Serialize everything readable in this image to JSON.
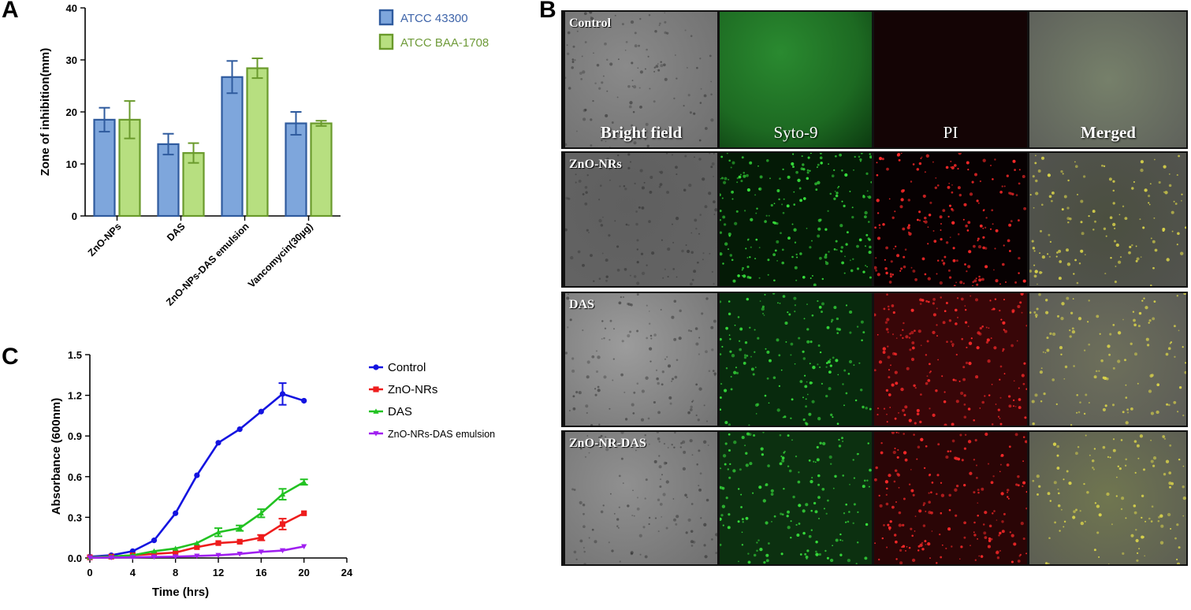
{
  "panels": {
    "a": "A",
    "b": "B",
    "c": "C"
  },
  "colors": {
    "atcc43300_fill": "#7ea6dc",
    "atcc43300_edge": "#2f5b9e",
    "atcc43300_text": "#3e64a9",
    "baa1708_fill": "#b7df80",
    "baa1708_edge": "#6a9a2c",
    "baa1708_text": "#6f9b3a",
    "control": "#1414e0",
    "zno_nrs": "#ee1c1c",
    "das": "#22c222",
    "emulsion": "#a020f0"
  },
  "chart_data": [
    {
      "type": "bar",
      "title": "",
      "ylabel": "Zone of inhibition(mm)",
      "xlabel": "",
      "ylim": [
        0,
        40
      ],
      "yticks": [
        "0",
        "10",
        "20",
        "30",
        "40"
      ],
      "categories": [
        "ZnO-NPs",
        "DAS",
        "ZnO-NPs-DAS emulsion",
        "Vancomycin(30µg)"
      ],
      "series": [
        {
          "name": "ATCC 43300",
          "values": [
            18.5,
            13.8,
            26.7,
            17.8
          ],
          "errors": [
            2.3,
            2.0,
            3.1,
            2.2
          ]
        },
        {
          "name": "ATCC BAA-1708",
          "values": [
            18.5,
            12.1,
            28.4,
            17.8
          ],
          "errors": [
            3.6,
            1.9,
            1.9,
            0.5
          ]
        }
      ],
      "legend": "top-right"
    },
    {
      "type": "line",
      "title": "",
      "xlabel": "Time (hrs)",
      "ylabel": "Absorbance (600nm)",
      "xlim": [
        0,
        24
      ],
      "ylim": [
        0,
        1.5
      ],
      "xticks": [
        "0",
        "4",
        "8",
        "12",
        "16",
        "20",
        "24"
      ],
      "yticks": [
        "0.0",
        "0.3",
        "0.6",
        "0.9",
        "1.2",
        "1.5"
      ],
      "x": [
        0,
        2,
        4,
        6,
        8,
        10,
        12,
        14,
        16,
        18,
        20
      ],
      "series": [
        {
          "name": "Control",
          "marker": "circle",
          "values": [
            0.01,
            0.02,
            0.05,
            0.13,
            0.33,
            0.61,
            0.85,
            0.95,
            1.08,
            1.21,
            1.16
          ],
          "errors": [
            0,
            0,
            0,
            0,
            0,
            0,
            0,
            0,
            0,
            0.08,
            0
          ]
        },
        {
          "name": "ZnO-NRs",
          "marker": "square",
          "values": [
            0.005,
            0.01,
            0.02,
            0.03,
            0.04,
            0.08,
            0.11,
            0.12,
            0.15,
            0.25,
            0.33
          ],
          "errors": [
            0,
            0,
            0,
            0,
            0,
            0,
            0,
            0,
            0.02,
            0.04,
            0
          ]
        },
        {
          "name": "DAS",
          "marker": "triangle-up",
          "values": [
            0.005,
            0.01,
            0.02,
            0.05,
            0.07,
            0.11,
            0.19,
            0.22,
            0.33,
            0.47,
            0.56
          ],
          "errors": [
            0,
            0,
            0,
            0,
            0,
            0,
            0.03,
            0.02,
            0.03,
            0.04,
            0.02
          ]
        },
        {
          "name": "ZnO-NRs-DAS emulsion",
          "marker": "triangle-down",
          "values": [
            0.002,
            0.003,
            0.005,
            0.008,
            0.01,
            0.015,
            0.02,
            0.03,
            0.045,
            0.055,
            0.085
          ],
          "errors": [
            0,
            0,
            0,
            0,
            0,
            0,
            0,
            0,
            0,
            0,
            0
          ]
        }
      ],
      "legend": "top-right"
    }
  ],
  "micrographs": {
    "channels": [
      "Bright field",
      "Syto-9",
      "PI",
      "Merged"
    ],
    "rows": [
      {
        "label": "Control",
        "bright": "#8a8a8a",
        "green": "#1d6a22",
        "red": "#140405",
        "merged": "#76806a",
        "green_dots": 0,
        "red_dots": 0
      },
      {
        "label": "ZnO-NRs",
        "bright": "#5f5f5f",
        "green": "#041a06",
        "red": "#070102",
        "merged": "#4b4f40",
        "green_dots": 220,
        "red_dots": 200
      },
      {
        "label": "DAS",
        "bright": "#9c9c9c",
        "green": "#082a0d",
        "red": "#380608",
        "merged": "#6d6f5b",
        "green_dots": 160,
        "red_dots": 200
      },
      {
        "label": "ZnO-NR-DAS",
        "bright": "#909090",
        "green": "#0c3010",
        "red": "#2a0506",
        "merged": "#707650",
        "green_dots": 170,
        "red_dots": 200
      }
    ]
  }
}
